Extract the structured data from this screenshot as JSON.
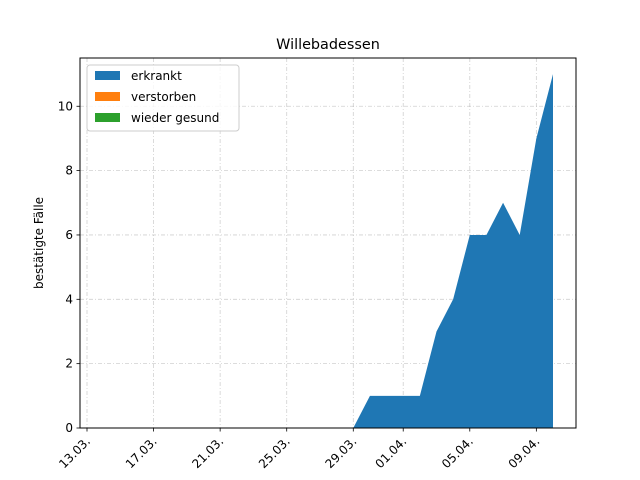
{
  "chart_data": {
    "type": "area",
    "title": "Willebadessen",
    "xlabel": "",
    "ylabel": "bestätigte Fälle",
    "x": [
      "13.03.",
      "14.03.",
      "15.03.",
      "16.03.",
      "17.03.",
      "18.03.",
      "19.03.",
      "20.03.",
      "21.03.",
      "22.03.",
      "23.03.",
      "24.03.",
      "25.03.",
      "26.03.",
      "27.03.",
      "28.03.",
      "29.03.",
      "30.03.",
      "31.03.",
      "01.04.",
      "02.04.",
      "03.04.",
      "04.04.",
      "05.04.",
      "06.04.",
      "07.04.",
      "08.04.",
      "09.04.",
      "10.04."
    ],
    "x_ticks": [
      "13.03.",
      "17.03.",
      "21.03.",
      "25.03.",
      "29.03.",
      "01.04.",
      "05.04.",
      "09.04."
    ],
    "ylim": [
      0,
      11.5
    ],
    "y_ticks": [
      0,
      2,
      4,
      6,
      8,
      10
    ],
    "series": [
      {
        "name": "erkrankt",
        "color": "#1f77b4",
        "values": [
          0,
          0,
          0,
          0,
          0,
          0,
          0,
          0,
          0,
          0,
          0,
          0,
          0,
          0,
          0,
          0,
          0,
          1,
          1,
          1,
          1,
          3,
          4,
          6,
          6,
          7,
          6,
          9,
          11
        ]
      },
      {
        "name": "verstorben",
        "color": "#ff7f0e",
        "values": [
          0,
          0,
          0,
          0,
          0,
          0,
          0,
          0,
          0,
          0,
          0,
          0,
          0,
          0,
          0,
          0,
          0,
          0,
          0,
          0,
          0,
          0,
          0,
          0,
          0,
          0,
          0,
          0,
          0
        ]
      },
      {
        "name": "wieder gesund",
        "color": "#2ca02c",
        "values": [
          0,
          0,
          0,
          0,
          0,
          0,
          0,
          0,
          0,
          0,
          0,
          0,
          0,
          0,
          0,
          0,
          0,
          0,
          0,
          0,
          0,
          0,
          0,
          0,
          0,
          0,
          0,
          0,
          0
        ]
      }
    ],
    "grid": true,
    "legend_position": "top-left"
  }
}
